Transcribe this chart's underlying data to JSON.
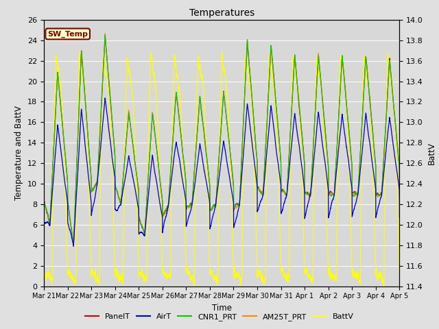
{
  "title": "Temperatures",
  "xlabel": "Time",
  "ylabel_left": "Temperature and BattV",
  "ylabel_right": "BattV",
  "ylim_left": [
    0,
    26
  ],
  "ylim_right": [
    11.4,
    14.0
  ],
  "yticks_left": [
    0,
    2,
    4,
    6,
    8,
    10,
    12,
    14,
    16,
    18,
    20,
    22,
    24,
    26
  ],
  "yticks_right": [
    11.4,
    11.6,
    11.8,
    12.0,
    12.2,
    12.4,
    12.6,
    12.8,
    13.0,
    13.2,
    13.4,
    13.6,
    13.8,
    14.0
  ],
  "xticklabels": [
    "Mar 21",
    "Mar 22",
    "Mar 23",
    "Mar 24",
    "Mar 25",
    "Mar 26",
    "Mar 27",
    "Mar 28",
    "Mar 29",
    "Mar 30",
    "Mar 31",
    "Apr 1",
    "Apr 2",
    "Apr 3",
    "Apr 4",
    "Apr 5"
  ],
  "legend_labels": [
    "PanelT",
    "AirT",
    "CNR1_PRT",
    "AM25T_PRT",
    "BattV"
  ],
  "legend_colors": [
    "#cc0000",
    "#0000cc",
    "#00cc00",
    "#ff8800",
    "#ffff00"
  ],
  "SW_Temp_box_color": "#800000",
  "SW_Temp_box_bg": "#ffffcc",
  "background_color": "#e8e8e8",
  "plot_bg_color": "#d8d8d8",
  "grid_color": "#ffffff",
  "fig_bg_color": "#e0e0e0",
  "n_points": 5000,
  "n_days": 15
}
